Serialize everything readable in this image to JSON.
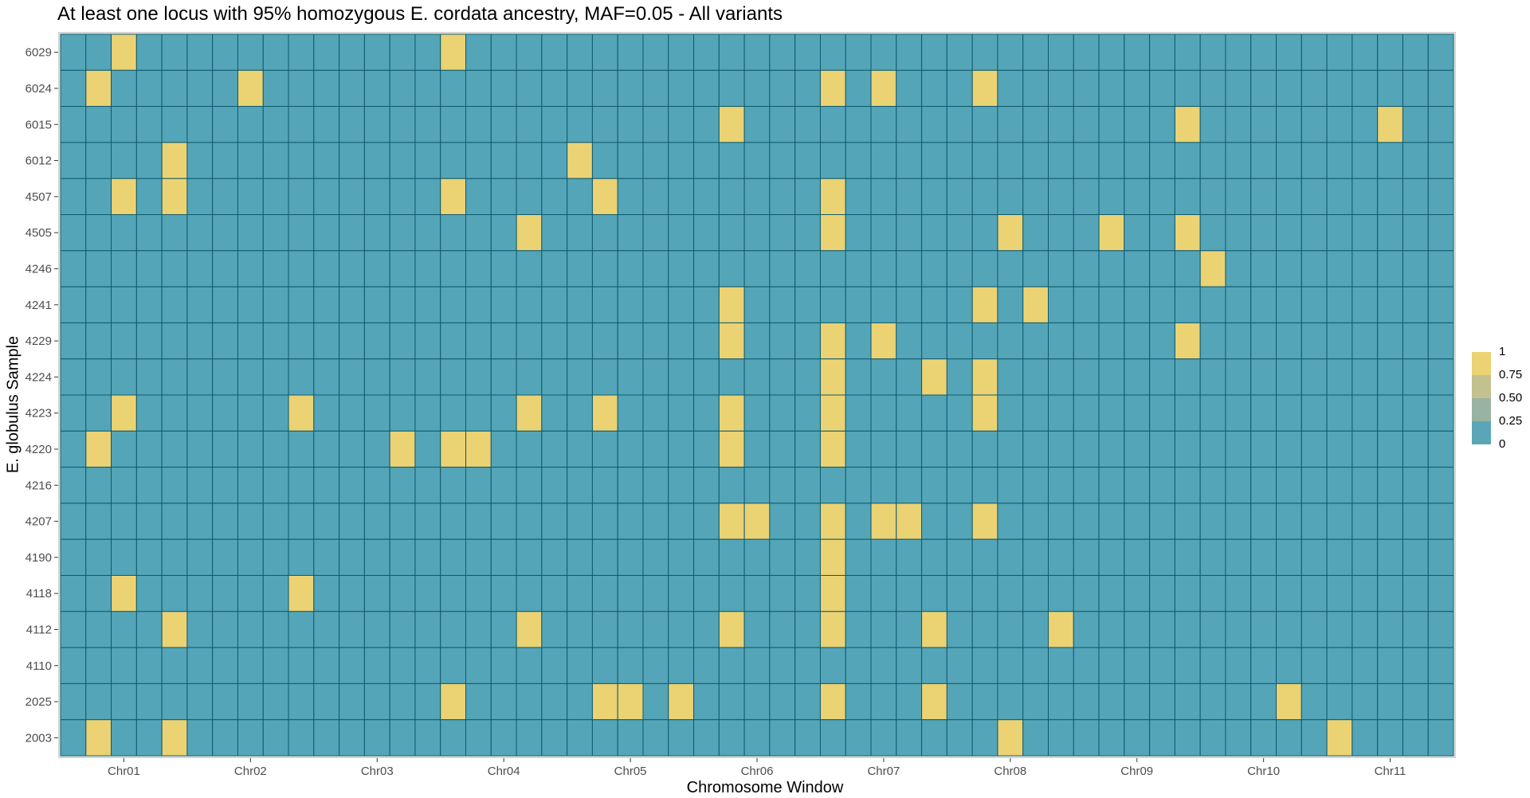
{
  "chart_data": {
    "type": "heatmap",
    "title": "At least one locus with 95% homozygous E. cordata ancestry, MAF=0.05 - All variants",
    "xlabel": "Chromosome Window",
    "ylabel": "E. globulus Sample",
    "x_tick_labels": [
      "Chr01",
      "Chr02",
      "Chr03",
      "Chr04",
      "Chr05",
      "Chr06",
      "Chr07",
      "Chr08",
      "Chr09",
      "Chr10",
      "Chr11"
    ],
    "n_windows": 55,
    "x_tick_window_index": [
      2,
      7,
      12,
      17,
      22,
      27,
      32,
      37,
      42,
      47,
      52
    ],
    "rows": [
      "6029",
      "6024",
      "6015",
      "6012",
      "4507",
      "4505",
      "4246",
      "4241",
      "4229",
      "4224",
      "4223",
      "4220",
      "4216",
      "4207",
      "4190",
      "4118",
      "4112",
      "4110",
      "2025",
      "2003"
    ],
    "value_range": [
      0,
      1
    ],
    "colors": {
      "low": "#55a5b8",
      "high": "#ebd273",
      "border": "#0e5a6b",
      "panel_border": "#d6d6d6"
    },
    "legend": {
      "labels": [
        "1",
        "0.75",
        "0.50",
        "0.25",
        "0"
      ],
      "colors": [
        "#ebd273",
        "#c3c18e",
        "#98b3a2",
        "#5aa6b7"
      ]
    },
    "cells_value_1": [
      {
        "sample": "6029",
        "windows": [
          2,
          15
        ]
      },
      {
        "sample": "6024",
        "windows": [
          1,
          7,
          30,
          32,
          36
        ]
      },
      {
        "sample": "6015",
        "windows": [
          26,
          44,
          52
        ]
      },
      {
        "sample": "6012",
        "windows": [
          4,
          20
        ]
      },
      {
        "sample": "4507",
        "windows": [
          2,
          4,
          15,
          21,
          30
        ]
      },
      {
        "sample": "4505",
        "windows": [
          18,
          30,
          37,
          41,
          44
        ]
      },
      {
        "sample": "4246",
        "windows": [
          45
        ]
      },
      {
        "sample": "4241",
        "windows": [
          26,
          36,
          38
        ]
      },
      {
        "sample": "4229",
        "windows": [
          26,
          30,
          32,
          44
        ]
      },
      {
        "sample": "4224",
        "windows": [
          30,
          34,
          36
        ]
      },
      {
        "sample": "4223",
        "windows": [
          2,
          9,
          18,
          21,
          26,
          30,
          36
        ]
      },
      {
        "sample": "4220",
        "windows": [
          1,
          13,
          15,
          16,
          26,
          30
        ]
      },
      {
        "sample": "4216",
        "windows": []
      },
      {
        "sample": "4207",
        "windows": [
          26,
          27,
          30,
          32,
          33,
          36
        ]
      },
      {
        "sample": "4190",
        "windows": [
          30
        ]
      },
      {
        "sample": "4118",
        "windows": [
          2,
          9,
          30
        ]
      },
      {
        "sample": "4112",
        "windows": [
          4,
          18,
          26,
          30,
          34,
          39
        ]
      },
      {
        "sample": "4110",
        "windows": []
      },
      {
        "sample": "2025",
        "windows": [
          15,
          21,
          22,
          24,
          30,
          34,
          48
        ]
      },
      {
        "sample": "2003",
        "windows": [
          1,
          4,
          37,
          50
        ]
      }
    ]
  }
}
